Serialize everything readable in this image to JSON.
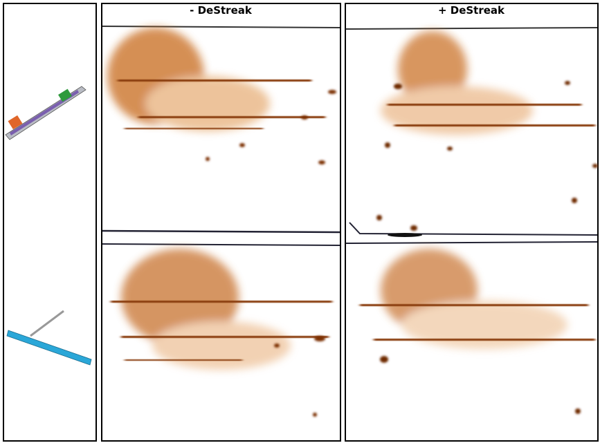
{
  "panels": [
    {
      "label": "- DeStreak"
    },
    {
      "label": "+ DeStreak"
    }
  ]
}
